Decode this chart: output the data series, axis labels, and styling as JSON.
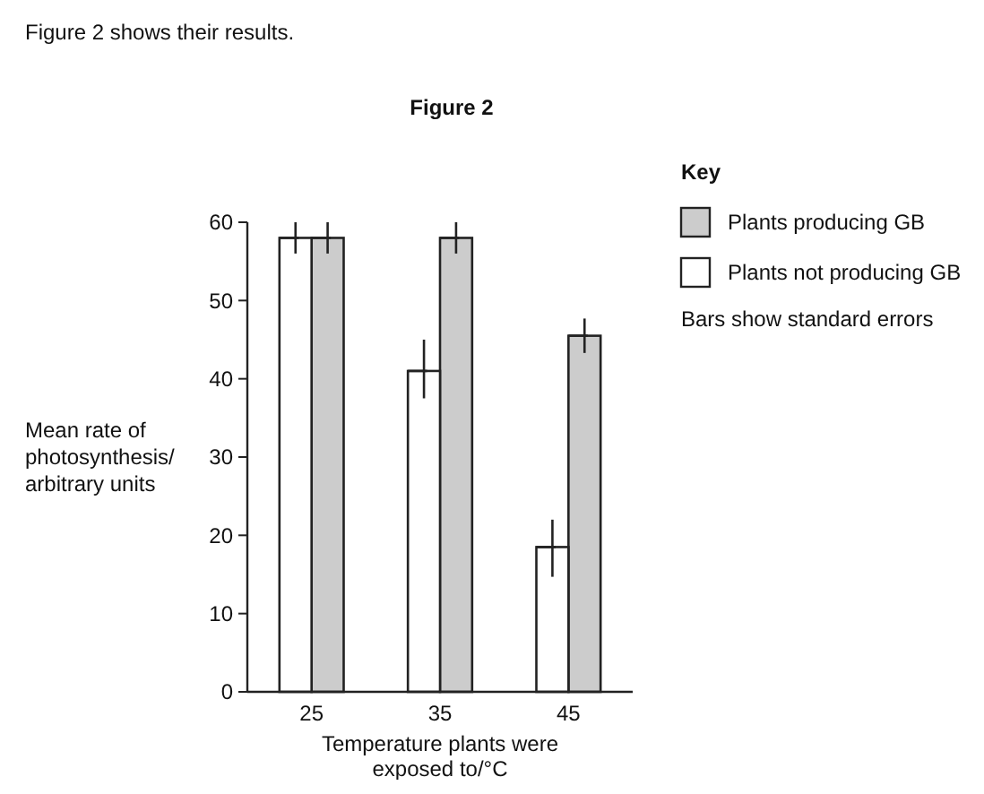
{
  "chart_data": {
    "type": "bar",
    "title": "Figure 2",
    "annotations": [
      "Figure 2 shows their results.",
      "Bars show standard errors"
    ],
    "categories": [
      "25",
      "35",
      "45"
    ],
    "xlabel": "Temperature plants were exposed to/°C",
    "ylabel": "Mean rate of photosynthesis/ arbitrary units",
    "legend_title": "Key",
    "legend": "right",
    "series": [
      {
        "name": "Plants producing GB",
        "color": "#cccccc",
        "values": [
          58,
          58,
          45.5
        ],
        "errors": [
          2,
          2,
          2.2
        ]
      },
      {
        "name": "Plants not producing GB",
        "color": "#ffffff",
        "values": [
          58,
          41,
          18.5
        ],
        "errors": [
          2,
          [
            37.5,
            45
          ],
          [
            14.7,
            22
          ]
        ]
      }
    ],
    "ylim": [
      0,
      60
    ],
    "yticks": [
      0,
      10,
      20,
      30,
      40,
      50,
      60
    ],
    "grid": false
  }
}
